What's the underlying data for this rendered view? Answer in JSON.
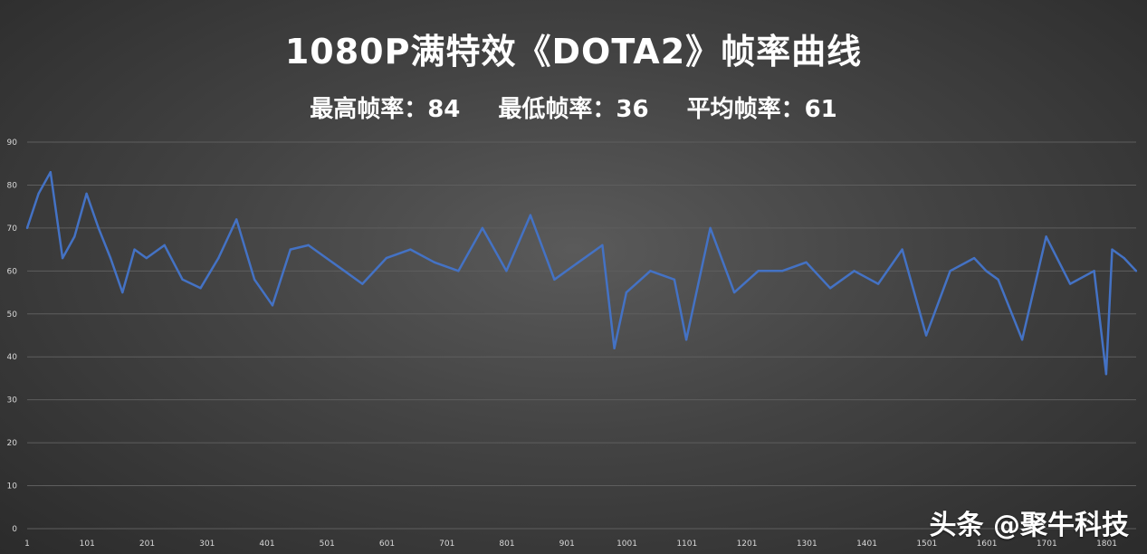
{
  "title": "1080P满特效《DOTA2》帧率曲线",
  "stats": [
    {
      "label": "最高帧率：84"
    },
    {
      "label": "最低帧率：36"
    },
    {
      "label": "平均帧率：61"
    }
  ],
  "watermark": "头条 @聚牛科技",
  "colors": {
    "line": "#4472c4",
    "grid": "#5e5e5e",
    "text": "#ffffff",
    "tick": "#d9d9d9"
  },
  "chart_data": {
    "type": "line",
    "title": "1080P满特效《DOTA2》帧率曲线",
    "xlabel": "",
    "ylabel": "",
    "ylim": [
      0,
      90
    ],
    "yticks": [
      0,
      10,
      20,
      30,
      40,
      50,
      60,
      70,
      80,
      90
    ],
    "xticks": [
      "1",
      "101",
      "201",
      "301",
      "401",
      "501",
      "601",
      "701",
      "801",
      "901",
      "1001",
      "1101",
      "1201",
      "1301",
      "1401",
      "1501",
      "1601",
      "1701",
      "1801"
    ],
    "xlim": [
      1,
      1850
    ],
    "grid": true,
    "legend": "none",
    "series": [
      {
        "x": [
          1,
          20,
          40,
          60,
          80,
          100,
          120,
          140,
          160,
          180,
          200,
          230,
          260,
          290,
          320,
          350,
          380,
          410,
          440,
          470,
          500,
          530,
          560,
          600,
          640,
          680,
          720,
          760,
          800,
          840,
          880,
          920,
          960,
          980,
          1000,
          1040,
          1080,
          1100,
          1140,
          1180,
          1220,
          1260,
          1300,
          1340,
          1380,
          1420,
          1460,
          1500,
          1540,
          1580,
          1600,
          1620,
          1660,
          1700,
          1740,
          1780,
          1800,
          1810,
          1830,
          1850
        ],
        "y": [
          70,
          78,
          83,
          63,
          68,
          78,
          70,
          63,
          55,
          65,
          63,
          66,
          58,
          56,
          63,
          72,
          58,
          52,
          65,
          66,
          63,
          60,
          57,
          63,
          65,
          62,
          60,
          70,
          60,
          73,
          58,
          62,
          66,
          42,
          55,
          60,
          58,
          44,
          70,
          55,
          60,
          60,
          62,
          56,
          60,
          57,
          65,
          45,
          60,
          63,
          60,
          58,
          44,
          68,
          57,
          60,
          36,
          65,
          63,
          60
        ]
      }
    ]
  }
}
